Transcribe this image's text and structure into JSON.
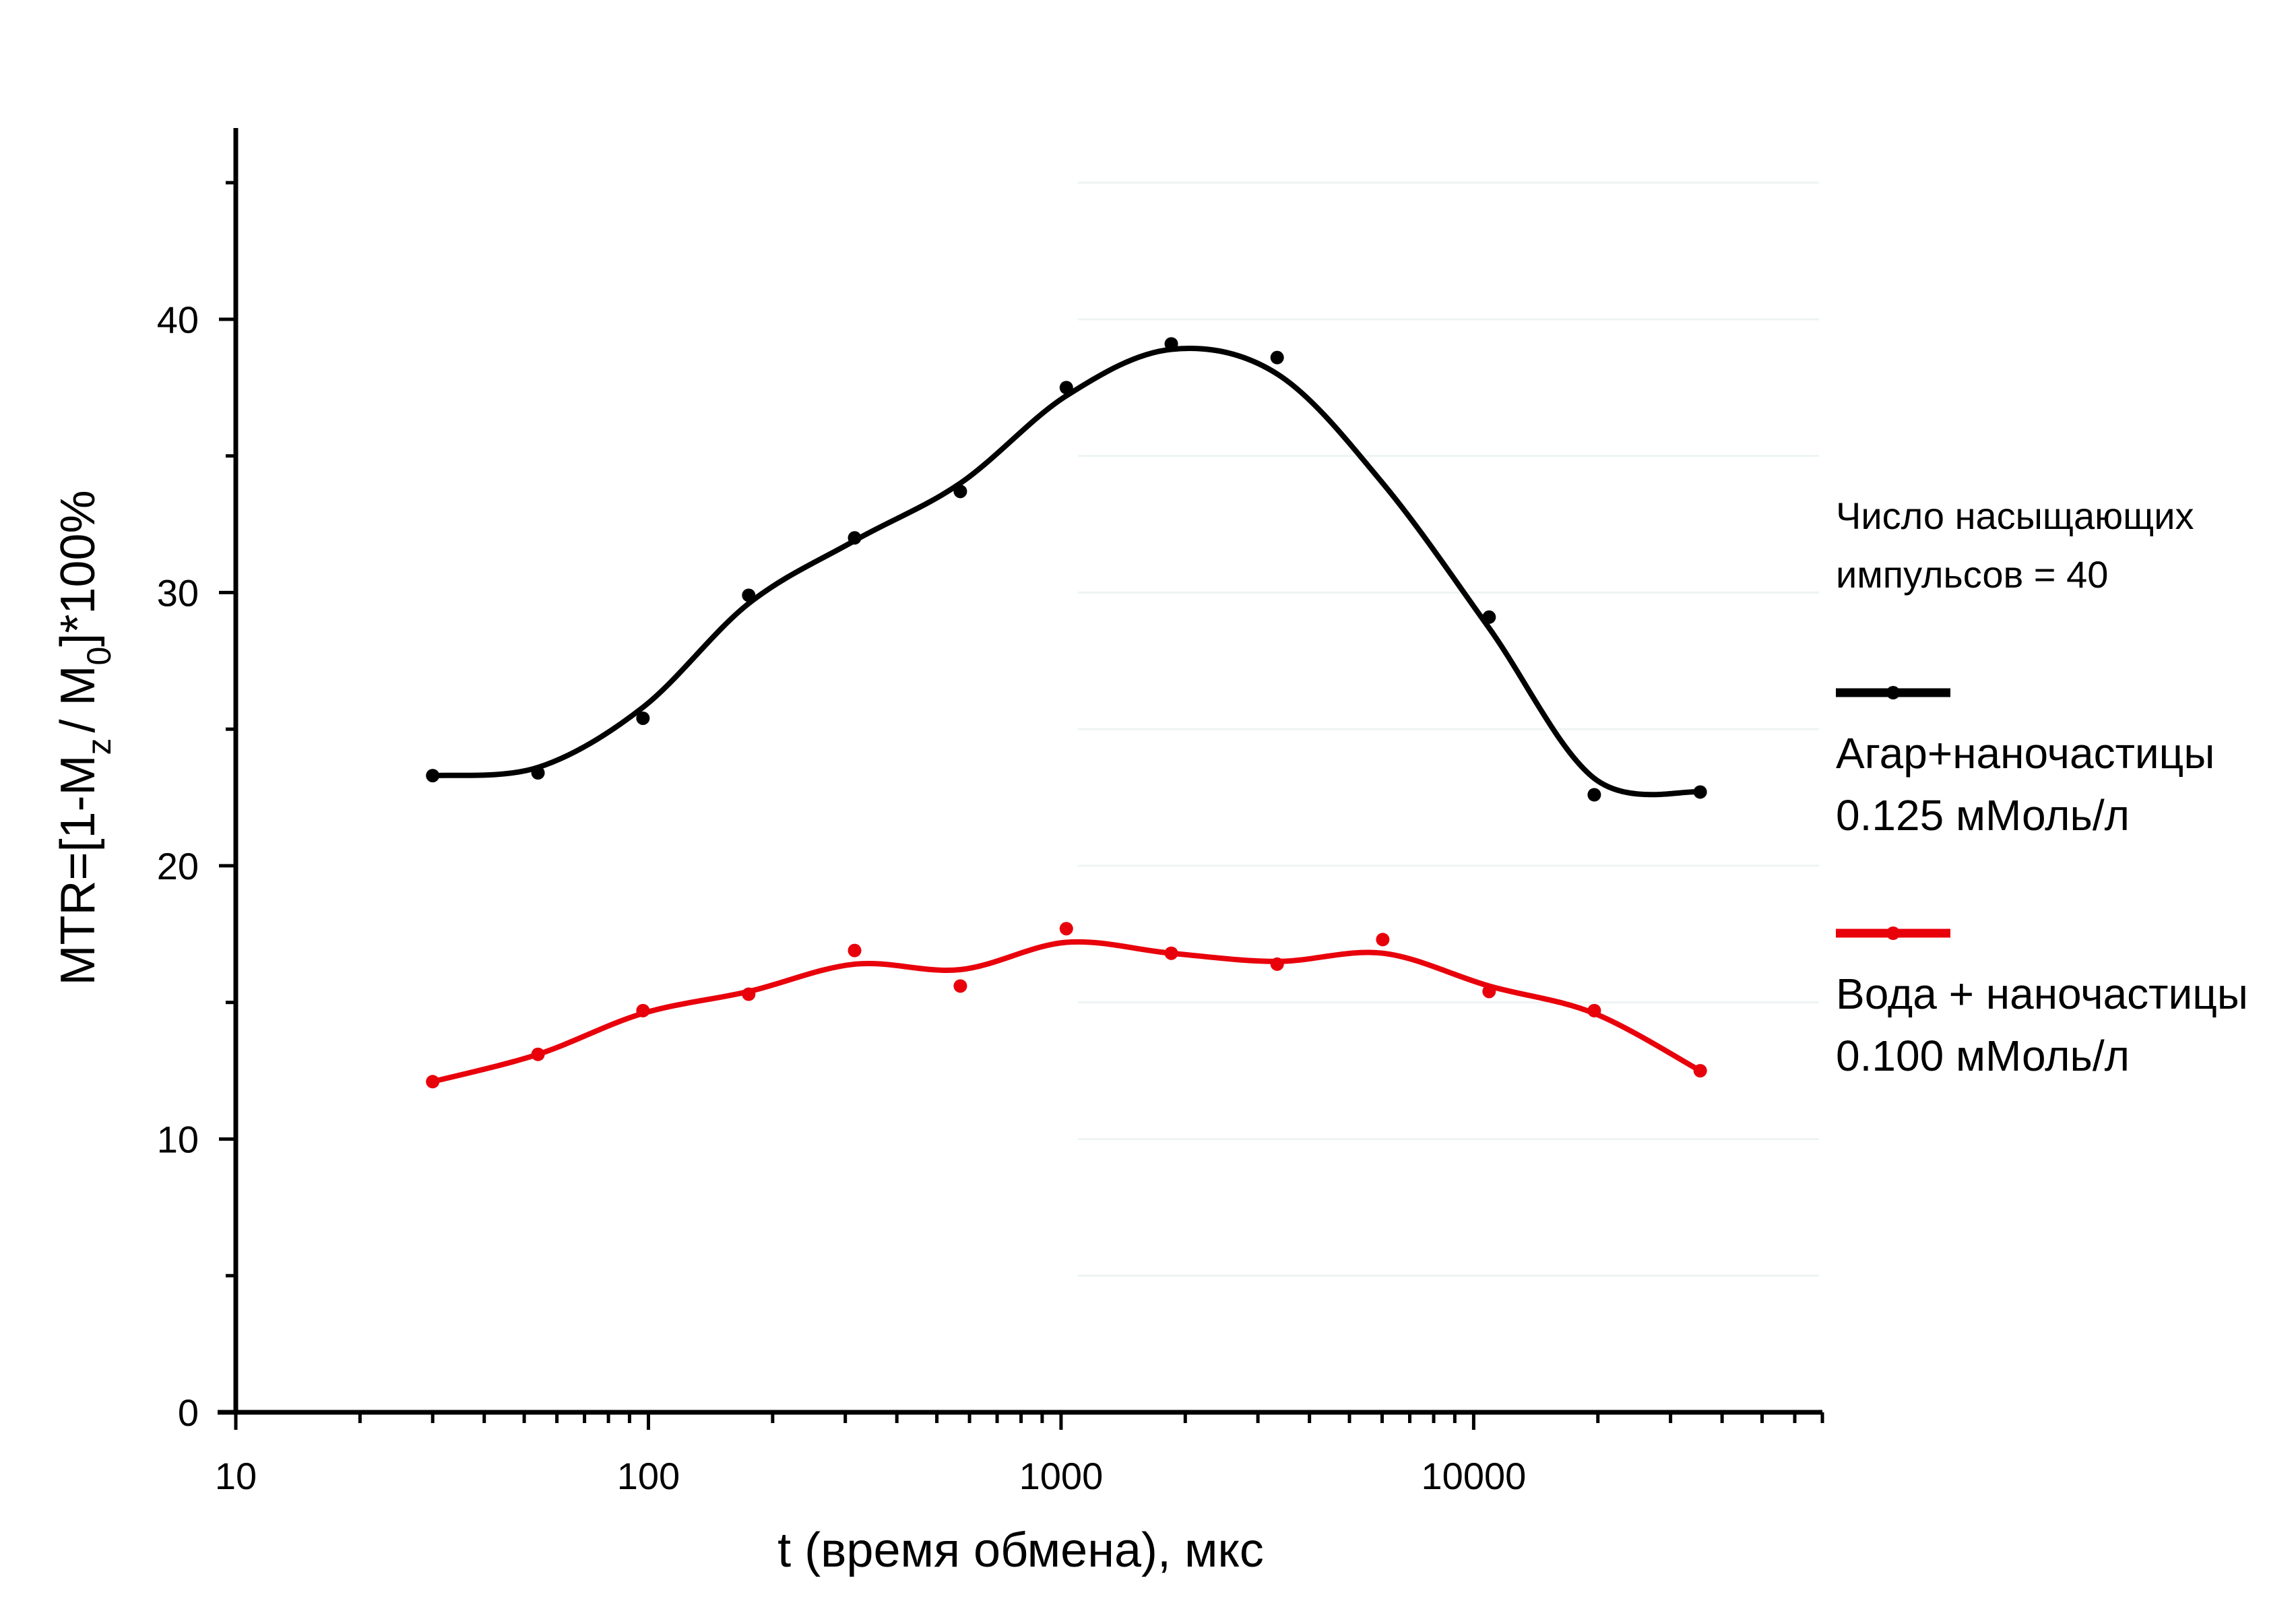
{
  "chart_data": {
    "type": "line",
    "xscale": "log",
    "xlim": [
      10,
      70000
    ],
    "ylim": [
      0,
      47
    ],
    "xticks": [
      10,
      100,
      1000,
      10000
    ],
    "xtick_labels": [
      "10",
      "100",
      "1000",
      "10000"
    ],
    "yticks": [
      0,
      10,
      20,
      30,
      40
    ],
    "ytick_labels": [
      "0",
      "10",
      "20",
      "30",
      "40"
    ],
    "xlabel": "t (время обмена), мкс",
    "ylabel_parts": {
      "a": "MTR=[1-M",
      "sub1": "z",
      "b": "/ M",
      "sub2": "0",
      "c": "]*100%"
    },
    "grid": false,
    "smooth": true,
    "legend": {
      "placement": "right",
      "note_line1": "Число насыщающих",
      "note_line2": "импульсов = 40"
    },
    "series": [
      {
        "color": "#000000",
        "label_line1": "Агар+наночастицы",
        "label_line2": "0.125 мМоль/л",
        "x": [
          30,
          54,
          97,
          175,
          316,
          570,
          1030,
          1850,
          3340,
          6020,
          10900,
          19600,
          35400
        ],
        "y": [
          23.3,
          23.4,
          25.4,
          29.9,
          32.0,
          33.7,
          37.5,
          39.1,
          38.6,
          null,
          29.1,
          22.6,
          22.7
        ],
        "curve_y": [
          23.3,
          23.6,
          25.8,
          29.6,
          31.9,
          34.0,
          37.2,
          38.9,
          38.0,
          34.0,
          28.7,
          23.2,
          22.7
        ]
      },
      {
        "color": "#e8000b",
        "label_line1": "Вода + наночастицы",
        "label_line2": "0.100 мМоль/л",
        "x": [
          30,
          54,
          97,
          175,
          316,
          570,
          1030,
          1850,
          3340,
          6020,
          10900,
          19600,
          35400
        ],
        "y": [
          12.1,
          13.1,
          14.7,
          15.3,
          16.9,
          15.6,
          17.7,
          16.8,
          16.4,
          17.3,
          15.4,
          14.7,
          12.5
        ],
        "curve_y": [
          12.1,
          13.1,
          14.6,
          15.4,
          16.4,
          16.2,
          17.2,
          16.8,
          16.5,
          16.8,
          15.6,
          14.6,
          12.5
        ]
      }
    ]
  }
}
